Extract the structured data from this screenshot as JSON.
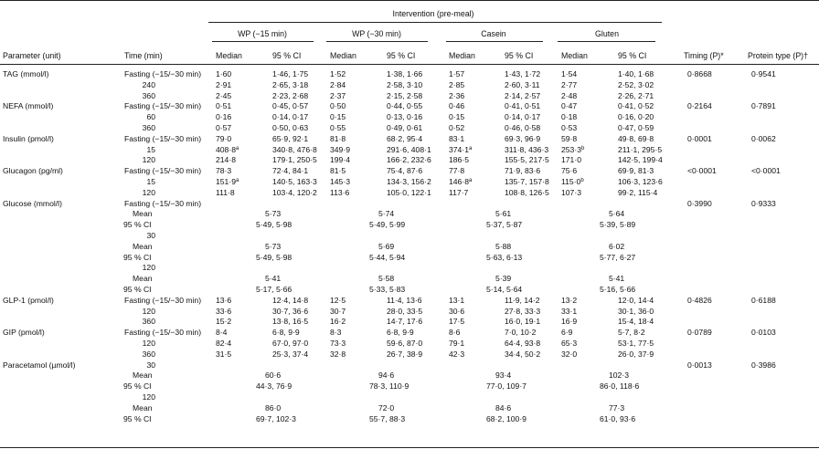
{
  "header": {
    "intervention": "Intervention (pre-meal)",
    "groups": [
      "WP (−15 min)",
      "WP (−30 min)",
      "Casein",
      "Gluten"
    ],
    "param_unit": "Parameter (unit)",
    "time_min": "Time (min)",
    "median": "Median",
    "ci": "95 % CI",
    "timing": "Timing (P)*",
    "protein_type": "Protein type (P)†"
  },
  "rows": [
    {
      "param": "TAG (mmol/l)",
      "time": "Fasting (−15/−30 min)",
      "cells": [
        "1·60",
        "1·46, 1·75",
        "1·52",
        "1·38, 1·66",
        "1·57",
        "1·43, 1·72",
        "1·54",
        "1·40, 1·68"
      ],
      "timing": "0·8668",
      "ptype": "0·9541"
    },
    {
      "param": "",
      "time": "240",
      "cells": [
        "2·91",
        "2·65, 3·18",
        "2·84",
        "2·58, 3·10",
        "2·85",
        "2·60, 3·11",
        "2·77",
        "2·52, 3·02"
      ],
      "timing": "",
      "ptype": ""
    },
    {
      "param": "",
      "time": "360",
      "cells": [
        "2·45",
        "2·23, 2·68",
        "2·37",
        "2·15, 2·58",
        "2·36",
        "2·14, 2·57",
        "2·48",
        "2·26, 2·71"
      ],
      "timing": "",
      "ptype": ""
    },
    {
      "param": "NEFA (mmol/l)",
      "time": "Fasting (−15/−30 min)",
      "cells": [
        "0·51",
        "0·45, 0·57",
        "0·50",
        "0·44, 0·55",
        "0·46",
        "0·41, 0·51",
        "0·47",
        "0·41, 0·52"
      ],
      "timing": "0·2164",
      "ptype": "0·7891"
    },
    {
      "param": "",
      "time": "60",
      "cells": [
        "0·16",
        "0·14, 0·17",
        "0·15",
        "0·13, 0·16",
        "0·15",
        "0·14, 0·17",
        "0·18",
        "0·16, 0·20"
      ],
      "timing": "",
      "ptype": ""
    },
    {
      "param": "",
      "time": "360",
      "cells": [
        "0·57",
        "0·50, 0·63",
        "0·55",
        "0·49, 0·61",
        "0·52",
        "0·46, 0·58",
        "0·53",
        "0·47, 0·59"
      ],
      "timing": "",
      "ptype": ""
    },
    {
      "param": "Insulin (pmol/l)",
      "time": "Fasting (−15/−30 min)",
      "cells": [
        "79·0",
        "65·9, 92·1",
        "81·8",
        "68·2, 95·4",
        "83·1",
        "69·3, 96·9",
        "59·8",
        "49·8, 69·8"
      ],
      "timing": "0·0001",
      "ptype": "0·0062"
    },
    {
      "param": "",
      "time": "15",
      "cells": [
        "408·8",
        "340·8, 476·8",
        "349·9",
        "291·6, 408·1",
        "374·1",
        "311·8, 436·3",
        "253·3",
        "211·1, 295·5"
      ],
      "sup": [
        "a",
        "",
        "a",
        "b"
      ],
      "timing": "",
      "ptype": ""
    },
    {
      "param": "",
      "time": "120",
      "cells": [
        "214·8",
        "179·1, 250·5",
        "199·4",
        "166·2, 232·6",
        "186·5",
        "155·5, 217·5",
        "171·0",
        "142·5, 199·4"
      ],
      "timing": "",
      "ptype": ""
    },
    {
      "param": "Glucagon (pg/ml)",
      "time": "Fasting (−15/−30 min)",
      "cells": [
        "78·3",
        "72·4, 84·1",
        "81·5",
        "75·4, 87·6",
        "77·8",
        "71·9, 83·6",
        "75·6",
        "69·9, 81·3"
      ],
      "timing": "<0·0001",
      "ptype": "<0·0001"
    },
    {
      "param": "",
      "time": "15",
      "cells": [
        "151·9",
        "140·5, 163·3",
        "145·3",
        "134·3, 156·2",
        "146·8",
        "135·7, 157·8",
        "115·0",
        "106·3, 123·6"
      ],
      "sup": [
        "a",
        "",
        "a",
        "b"
      ],
      "timing": "",
      "ptype": ""
    },
    {
      "param": "",
      "time": "120",
      "cells": [
        "111·8",
        "103·4, 120·2",
        "113·6",
        "105·0, 122·1",
        "117·7",
        "108·8, 126·5",
        "107·3",
        "99·2, 115·4"
      ],
      "timing": "",
      "ptype": ""
    }
  ],
  "glucose": {
    "param": "Glucose (mmol/l)",
    "fasting_time": "Fasting (−15/−30 min)",
    "timing": "0·3990",
    "ptype": "0·9333",
    "mean_label": "Mean",
    "ci_label": "95 % CI",
    "t30": "30",
    "t120": "120",
    "fasting": {
      "mean": [
        "5·73",
        "5·74",
        "5·61",
        "5·64"
      ],
      "ci": [
        "5·49, 5·98",
        "5·49, 5·99",
        "5·37, 5·87",
        "5·39, 5·89"
      ]
    },
    "m30": {
      "mean": [
        "5·73",
        "5·69",
        "5·88",
        "6·02"
      ],
      "ci": [
        "5·49, 5·98",
        "5·44, 5·94",
        "5·63, 6·13",
        "5·77, 6·27"
      ]
    },
    "m120": {
      "mean": [
        "5·41",
        "5·58",
        "5·39",
        "5·41"
      ],
      "ci": [
        "5·17, 5·66",
        "5·33, 5·83",
        "5·14, 5·64",
        "5·16, 5·66"
      ]
    }
  },
  "rows2": [
    {
      "param": "GLP-1 (pmol/l)",
      "time": "Fasting (−15/−30 min)",
      "cells": [
        "13·6",
        "12·4, 14·8",
        "12·5",
        "11·4, 13·6",
        "13·1",
        "11·9, 14·2",
        "13·2",
        "12·0, 14·4"
      ],
      "timing": "0·4826",
      "ptype": "0·6188"
    },
    {
      "param": "",
      "time": "120",
      "cells": [
        "33·6",
        "30·7, 36·6",
        "30·7",
        "28·0, 33·5",
        "30·6",
        "27·8, 33·3",
        "33·1",
        "30·1, 36·0"
      ],
      "timing": "",
      "ptype": ""
    },
    {
      "param": "",
      "time": "360",
      "cells": [
        "15·2",
        "13·8, 16·5",
        "16·2",
        "14·7, 17·6",
        "17·5",
        "16·0, 19·1",
        "16·9",
        "15·4, 18·4"
      ],
      "timing": "",
      "ptype": ""
    },
    {
      "param": "GIP (pmol/l)",
      "time": "Fasting (−15/−30 min)",
      "cells": [
        "8·4",
        "6·8, 9·9",
        "8·3",
        "6·8, 9·9",
        "8·6",
        "7·0, 10·2",
        "6·9",
        "5·7, 8·2"
      ],
      "timing": "0·0789",
      "ptype": "0·0103"
    },
    {
      "param": "",
      "time": "120",
      "cells": [
        "82·4",
        "67·0, 97·0",
        "73·3",
        "59·6, 87·0",
        "79·1",
        "64·4, 93·8",
        "65·3",
        "53·1, 77·5"
      ],
      "timing": "",
      "ptype": ""
    },
    {
      "param": "",
      "time": "360",
      "cells": [
        "31·5",
        "25·3, 37·4",
        "32·8",
        "26·7, 38·9",
        "42·3",
        "34·4, 50·2",
        "32·0",
        "26·0, 37·9"
      ],
      "timing": "",
      "ptype": ""
    }
  ],
  "paracetamol": {
    "param": "Paracetamol (µmol/l)",
    "t30": "30",
    "t120": "120",
    "timing": "0·0013",
    "ptype": "0·3986",
    "mean_label": "Mean",
    "ci_label": "95 % CI",
    "m30": {
      "mean": [
        "60·6",
        "94·6",
        "93·4",
        "102·3"
      ],
      "ci": [
        "44·3, 76·9",
        "78·3, 110·9",
        "77·0, 109·7",
        "86·0, 118·6"
      ]
    },
    "m120": {
      "mean": [
        "86·0",
        "72·0",
        "84·6",
        "77·3"
      ],
      "ci": [
        "69·7, 102·3",
        "55·7, 88·3",
        "68·2, 100·9",
        "61·0, 93·6"
      ]
    }
  }
}
